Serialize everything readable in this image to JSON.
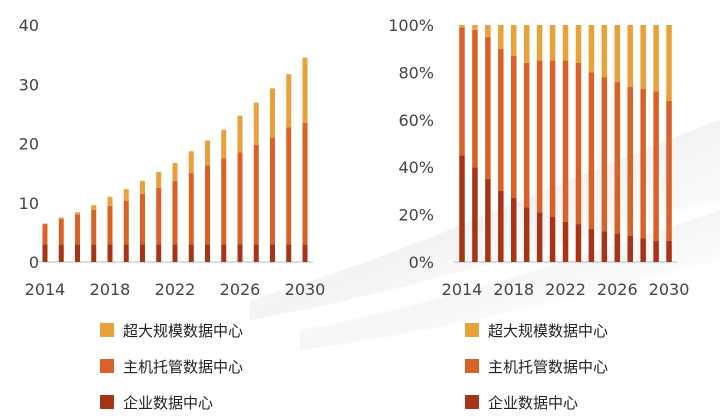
{
  "colors": {
    "hyperscale": "#E8A23A",
    "colocation": "#DA6127",
    "enterprise": "#A83417",
    "axis": "#BBBBBB",
    "text": "#444444"
  },
  "legend": {
    "hyperscale": "超大规模数据中心",
    "colocation": "主机托管数据中心",
    "enterprise": "企业数据中心"
  },
  "chart_data": [
    {
      "type": "bar",
      "stacked": true,
      "title": "",
      "xlabel": "",
      "ylabel": "",
      "ylim": [
        0,
        40
      ],
      "yticks": [
        "0",
        "10",
        "20",
        "30",
        "40"
      ],
      "xtick_labels": [
        "2014",
        "2018",
        "2022",
        "2026",
        "2030"
      ],
      "categories": [
        "2014",
        "2015",
        "2016",
        "2017",
        "2018",
        "2019",
        "2020",
        "2021",
        "2022",
        "2023",
        "2024",
        "2025",
        "2026",
        "2027",
        "2028",
        "2029",
        "2030"
      ],
      "series": [
        {
          "name": "企业数据中心",
          "key": "enterprise",
          "values": [
            3.0,
            3.0,
            3.0,
            3.0,
            3.0,
            3.0,
            3.0,
            3.0,
            3.0,
            3.0,
            3.0,
            3.0,
            3.0,
            3.0,
            3.0,
            3.0,
            3.0
          ]
        },
        {
          "name": "主机托管数据中心",
          "key": "colocation",
          "values": [
            3.4,
            4.3,
            5.0,
            5.8,
            6.5,
            7.3,
            8.5,
            9.5,
            10.7,
            12.0,
            13.3,
            14.5,
            15.5,
            16.8,
            18.0,
            19.7,
            20.5
          ]
        },
        {
          "name": "超大规模数据中心",
          "key": "hyperscale",
          "values": [
            0.1,
            0.2,
            0.4,
            0.8,
            1.5,
            2.0,
            2.2,
            2.7,
            3.0,
            3.7,
            4.2,
            4.8,
            6.2,
            7.1,
            8.3,
            9.0,
            11.0
          ]
        }
      ]
    },
    {
      "type": "bar",
      "stacked": true,
      "percent": true,
      "title": "",
      "xlabel": "",
      "ylabel": "",
      "ylim": [
        0,
        100
      ],
      "yticks": [
        "0%",
        "20%",
        "40%",
        "60%",
        "80%",
        "100%"
      ],
      "xtick_labels": [
        "2014",
        "2018",
        "2022",
        "2026",
        "2030"
      ],
      "categories": [
        "2014",
        "2015",
        "2016",
        "2017",
        "2018",
        "2019",
        "2020",
        "2021",
        "2022",
        "2023",
        "2024",
        "2025",
        "2026",
        "2027",
        "2028",
        "2029",
        "2030"
      ],
      "series": [
        {
          "name": "企业数据中心",
          "key": "enterprise",
          "values": [
            45,
            40,
            35,
            30,
            27,
            23,
            21,
            19,
            17,
            16,
            14,
            13,
            12,
            11,
            10,
            9,
            9
          ]
        },
        {
          "name": "主机托管数据中心",
          "key": "colocation",
          "values": [
            54,
            58,
            60,
            60,
            60,
            61,
            64,
            66,
            68,
            68,
            66,
            65,
            64,
            63,
            63,
            63,
            59
          ]
        },
        {
          "name": "超大规模数据中心",
          "key": "hyperscale",
          "values": [
            1,
            2,
            5,
            10,
            13,
            16,
            15,
            15,
            15,
            16,
            20,
            22,
            24,
            26,
            27,
            28,
            32
          ]
        }
      ]
    }
  ]
}
